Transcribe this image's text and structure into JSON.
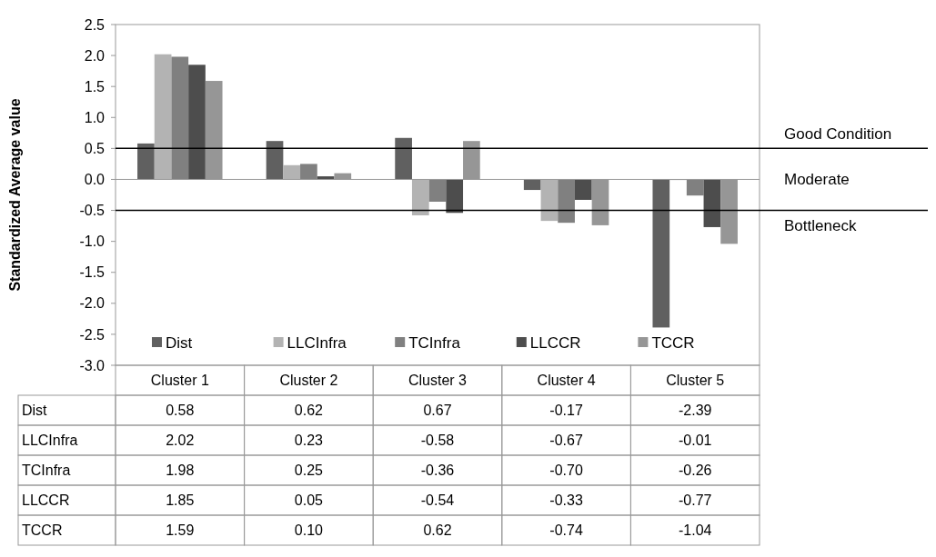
{
  "chart_data": {
    "type": "bar",
    "ylabel": "Standardized Average value",
    "categories": [
      "Cluster 1",
      "Cluster 2",
      "Cluster 3",
      "Cluster 4",
      "Cluster 5"
    ],
    "series": [
      {
        "name": "Dist",
        "color": "#606060",
        "values": [
          0.58,
          0.62,
          0.67,
          -0.17,
          -2.39
        ],
        "value_labels": [
          "0.58",
          "0.62",
          "0.67",
          "-0.17",
          "-2.39"
        ]
      },
      {
        "name": "LLCInfra",
        "color": "#b3b3b3",
        "values": [
          2.02,
          0.23,
          -0.58,
          -0.67,
          -0.01
        ],
        "value_labels": [
          "2.02",
          "0.23",
          "-0.58",
          "-0.67",
          "-0.01"
        ]
      },
      {
        "name": "TCInfra",
        "color": "#808080",
        "values": [
          1.98,
          0.25,
          -0.36,
          -0.7,
          -0.26
        ],
        "value_labels": [
          "1.98",
          "0.25",
          "-0.36",
          "-0.70",
          "-0.26"
        ]
      },
      {
        "name": "LLCCR",
        "color": "#4d4d4d",
        "values": [
          1.85,
          0.05,
          -0.54,
          -0.33,
          -0.77
        ],
        "value_labels": [
          "1.85",
          "0.05",
          "-0.54",
          "-0.33",
          "-0.77"
        ]
      },
      {
        "name": "TCCR",
        "color": "#969696",
        "values": [
          1.59,
          0.1,
          0.62,
          -0.74,
          -1.04
        ],
        "value_labels": [
          "1.59",
          "0.10",
          "0.62",
          "-0.74",
          "-1.04"
        ]
      }
    ],
    "ylim": [
      -3,
      2.5
    ],
    "yticks": [
      {
        "value": -3,
        "label": "-3.0"
      },
      {
        "value": -2.5,
        "label": "-2.5"
      },
      {
        "value": -2,
        "label": "-2.0"
      },
      {
        "value": -1.5,
        "label": "-1.5"
      },
      {
        "value": -1,
        "label": "-1.0"
      },
      {
        "value": -0.5,
        "label": "-0.5"
      },
      {
        "value": 0,
        "label": "0.0"
      },
      {
        "value": 0.5,
        "label": "0.5"
      },
      {
        "value": 1,
        "label": "1.0"
      },
      {
        "value": 1.5,
        "label": "1.5"
      },
      {
        "value": 2,
        "label": "2.0"
      },
      {
        "value": 2.5,
        "label": "2.5"
      }
    ],
    "ref_lines": [
      {
        "axis": "y",
        "value": 0.5,
        "label": "Good Condition",
        "color": "#000000"
      },
      {
        "axis": "y",
        "value": -0.5,
        "label": "Bottleneck",
        "color": "#000000"
      }
    ],
    "annotations": [
      "Moderate"
    ],
    "legend": "bottom"
  }
}
